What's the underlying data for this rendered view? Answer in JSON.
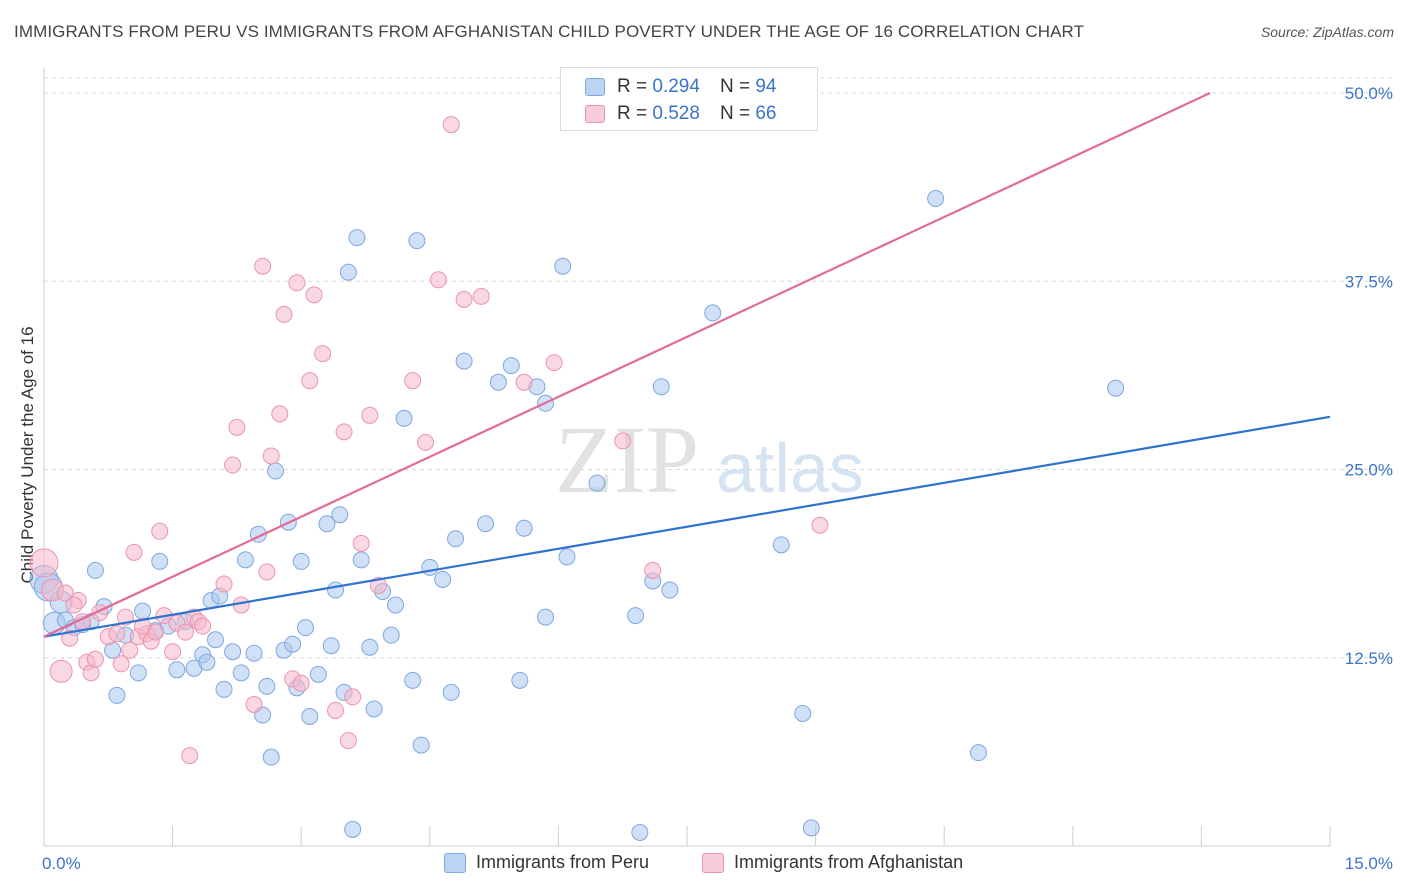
{
  "header": {
    "title": "IMMIGRANTS FROM PERU VS IMMIGRANTS FROM AFGHANISTAN CHILD POVERTY UNDER THE AGE OF 16 CORRELATION CHART",
    "source": "Source: ZipAtlas.com"
  },
  "watermark": {
    "zip": "ZIP",
    "atlas": "atlas"
  },
  "legend": {
    "peru": {
      "r_label": "R =",
      "r_value": "0.294",
      "n_label": "N =",
      "n_value": "94"
    },
    "afghanistan": {
      "r_label": "R =",
      "r_value": "0.528",
      "n_label": "N =",
      "n_value": "66"
    }
  },
  "colors": {
    "peru_fill": "#a9c7ef",
    "peru_stroke": "#7ea8e0",
    "peru_line": "#2f72cf",
    "afghanistan_fill": "#f6b8cb",
    "afghanistan_stroke": "#ec93b0",
    "afghanistan_line": "#e36a97",
    "tick_text": "#3b74c9",
    "grid": "#d8d8d8"
  },
  "chart_data": {
    "type": "scatter",
    "title": "IMMIGRANTS FROM PERU VS IMMIGRANTS FROM AFGHANISTAN CHILD POVERTY UNDER THE AGE OF 16 CORRELATION CHART",
    "xlabel": "",
    "ylabel": "Child Poverty Under the Age of 16",
    "xlim": [
      0,
      15
    ],
    "ylim": [
      0,
      51
    ],
    "x_tick_labels": [
      "0.0%",
      "15.0%"
    ],
    "y_ticks": [
      12.5,
      25.0,
      37.5,
      50.0
    ],
    "y_tick_labels": [
      "12.5%",
      "25.0%",
      "37.5%",
      "50.0%"
    ],
    "grid": true,
    "legend_position": "top-center",
    "series": [
      {
        "name": "Immigrants from Peru",
        "r": 0.294,
        "n": 94,
        "trend": {
          "x": [
            0.0,
            15.0
          ],
          "y": [
            13.9,
            28.5
          ]
        },
        "points": [
          [
            0.0,
            17.7
          ],
          [
            0.05,
            17.2
          ],
          [
            0.12,
            14.8
          ],
          [
            0.2,
            16.2
          ],
          [
            0.25,
            15.0
          ],
          [
            0.35,
            14.5
          ],
          [
            0.45,
            14.7
          ],
          [
            0.55,
            14.9
          ],
          [
            0.6,
            18.3
          ],
          [
            0.7,
            15.9
          ],
          [
            0.8,
            13.0
          ],
          [
            0.85,
            10.0
          ],
          [
            0.95,
            14.0
          ],
          [
            1.1,
            11.5
          ],
          [
            1.15,
            15.6
          ],
          [
            1.3,
            14.3
          ],
          [
            1.35,
            18.9
          ],
          [
            1.45,
            14.6
          ],
          [
            1.55,
            11.7
          ],
          [
            1.65,
            14.9
          ],
          [
            1.75,
            11.8
          ],
          [
            1.85,
            12.7
          ],
          [
            1.9,
            12.2
          ],
          [
            1.95,
            16.3
          ],
          [
            2.0,
            13.7
          ],
          [
            2.05,
            16.6
          ],
          [
            2.1,
            10.4
          ],
          [
            2.2,
            12.9
          ],
          [
            2.3,
            11.5
          ],
          [
            2.35,
            19.0
          ],
          [
            2.45,
            12.8
          ],
          [
            2.5,
            20.7
          ],
          [
            2.55,
            8.7
          ],
          [
            2.6,
            10.6
          ],
          [
            2.65,
            5.9
          ],
          [
            2.7,
            24.9
          ],
          [
            2.8,
            13.0
          ],
          [
            2.85,
            21.5
          ],
          [
            2.9,
            13.4
          ],
          [
            2.95,
            10.5
          ],
          [
            3.0,
            18.9
          ],
          [
            3.05,
            14.5
          ],
          [
            3.1,
            8.6
          ],
          [
            3.2,
            11.4
          ],
          [
            3.3,
            21.4
          ],
          [
            3.35,
            13.3
          ],
          [
            3.4,
            17.0
          ],
          [
            3.45,
            22.0
          ],
          [
            3.5,
            10.2
          ],
          [
            3.55,
            38.1
          ],
          [
            3.6,
            1.1
          ],
          [
            3.65,
            40.4
          ],
          [
            3.7,
            19.0
          ],
          [
            3.8,
            13.2
          ],
          [
            3.85,
            9.1
          ],
          [
            3.95,
            16.9
          ],
          [
            4.05,
            14.0
          ],
          [
            4.1,
            16.0
          ],
          [
            4.2,
            28.4
          ],
          [
            4.3,
            11.0
          ],
          [
            4.35,
            40.2
          ],
          [
            4.4,
            6.7
          ],
          [
            4.5,
            18.5
          ],
          [
            4.65,
            17.7
          ],
          [
            4.75,
            10.2
          ],
          [
            4.8,
            20.4
          ],
          [
            4.9,
            32.2
          ],
          [
            5.15,
            21.4
          ],
          [
            5.3,
            30.8
          ],
          [
            5.45,
            31.9
          ],
          [
            5.55,
            11.0
          ],
          [
            5.6,
            21.1
          ],
          [
            5.75,
            30.5
          ],
          [
            5.85,
            29.4
          ],
          [
            5.85,
            15.2
          ],
          [
            6.05,
            38.5
          ],
          [
            6.1,
            19.2
          ],
          [
            6.45,
            24.1
          ],
          [
            6.9,
            15.3
          ],
          [
            6.95,
            0.9
          ],
          [
            7.1,
            17.6
          ],
          [
            7.2,
            30.5
          ],
          [
            7.3,
            17.0
          ],
          [
            7.8,
            35.4
          ],
          [
            8.6,
            20.0
          ],
          [
            8.85,
            8.8
          ],
          [
            8.95,
            1.2
          ],
          [
            10.4,
            43.0
          ],
          [
            10.9,
            6.2
          ],
          [
            12.5,
            30.4
          ]
        ]
      },
      {
        "name": "Immigrants from Afghanistan",
        "r": 0.528,
        "n": 66,
        "trend": {
          "x": [
            0.0,
            13.6
          ],
          "y": [
            13.9,
            50.0
          ]
        },
        "points": [
          [
            0.0,
            18.8
          ],
          [
            0.1,
            17.0
          ],
          [
            0.2,
            11.6
          ],
          [
            0.25,
            16.8
          ],
          [
            0.3,
            13.8
          ],
          [
            0.4,
            16.3
          ],
          [
            0.45,
            14.9
          ],
          [
            0.5,
            12.2
          ],
          [
            0.55,
            11.5
          ],
          [
            0.6,
            12.4
          ],
          [
            0.65,
            15.5
          ],
          [
            0.75,
            13.9
          ],
          [
            0.85,
            14.1
          ],
          [
            0.9,
            12.1
          ],
          [
            0.95,
            15.2
          ],
          [
            1.0,
            13.0
          ],
          [
            1.05,
            19.5
          ],
          [
            1.1,
            13.9
          ],
          [
            1.2,
            14.1
          ],
          [
            1.25,
            13.6
          ],
          [
            1.3,
            14.2
          ],
          [
            1.35,
            20.9
          ],
          [
            1.4,
            15.3
          ],
          [
            1.5,
            12.9
          ],
          [
            1.55,
            14.8
          ],
          [
            1.65,
            14.2
          ],
          [
            1.7,
            6.0
          ],
          [
            1.75,
            15.2
          ],
          [
            1.8,
            14.9
          ],
          [
            1.85,
            14.6
          ],
          [
            2.1,
            17.4
          ],
          [
            2.2,
            25.3
          ],
          [
            2.25,
            27.8
          ],
          [
            2.3,
            16.0
          ],
          [
            2.45,
            9.4
          ],
          [
            2.55,
            38.5
          ],
          [
            2.6,
            18.2
          ],
          [
            2.65,
            25.9
          ],
          [
            2.75,
            28.7
          ],
          [
            2.8,
            35.3
          ],
          [
            2.9,
            11.1
          ],
          [
            2.95,
            37.4
          ],
          [
            3.0,
            10.8
          ],
          [
            3.1,
            30.9
          ],
          [
            3.15,
            36.6
          ],
          [
            3.25,
            32.7
          ],
          [
            3.4,
            9.0
          ],
          [
            3.5,
            27.5
          ],
          [
            3.55,
            7.0
          ],
          [
            3.6,
            9.9
          ],
          [
            3.7,
            20.1
          ],
          [
            3.8,
            28.6
          ],
          [
            3.9,
            17.3
          ],
          [
            4.3,
            30.9
          ],
          [
            4.45,
            26.8
          ],
          [
            4.6,
            37.6
          ],
          [
            4.75,
            47.9
          ],
          [
            4.9,
            36.3
          ],
          [
            5.1,
            36.5
          ],
          [
            5.6,
            30.8
          ],
          [
            5.95,
            32.1
          ],
          [
            6.75,
            26.9
          ],
          [
            7.1,
            18.3
          ],
          [
            9.05,
            21.3
          ],
          [
            0.35,
            16.0
          ],
          [
            1.15,
            14.6
          ]
        ]
      }
    ]
  },
  "bottom_legend": {
    "peru": "Immigrants from Peru",
    "afghanistan": "Immigrants from Afghanistan"
  }
}
